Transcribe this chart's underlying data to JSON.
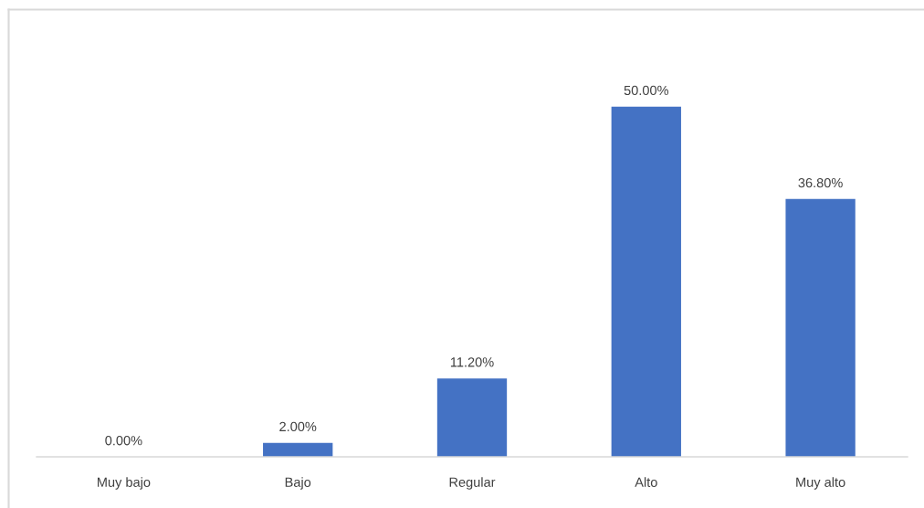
{
  "chart_data": {
    "type": "bar",
    "categories": [
      "Muy bajo",
      "Bajo",
      "Regular",
      "Alto",
      "Muy alto"
    ],
    "values": [
      0,
      2,
      11.2,
      50,
      36.8
    ],
    "value_labels": [
      "0.00%",
      "2.00%",
      "11.20%",
      "50.00%",
      "36.80%"
    ],
    "color": "#4472c4",
    "tick_labels": "x"
  }
}
